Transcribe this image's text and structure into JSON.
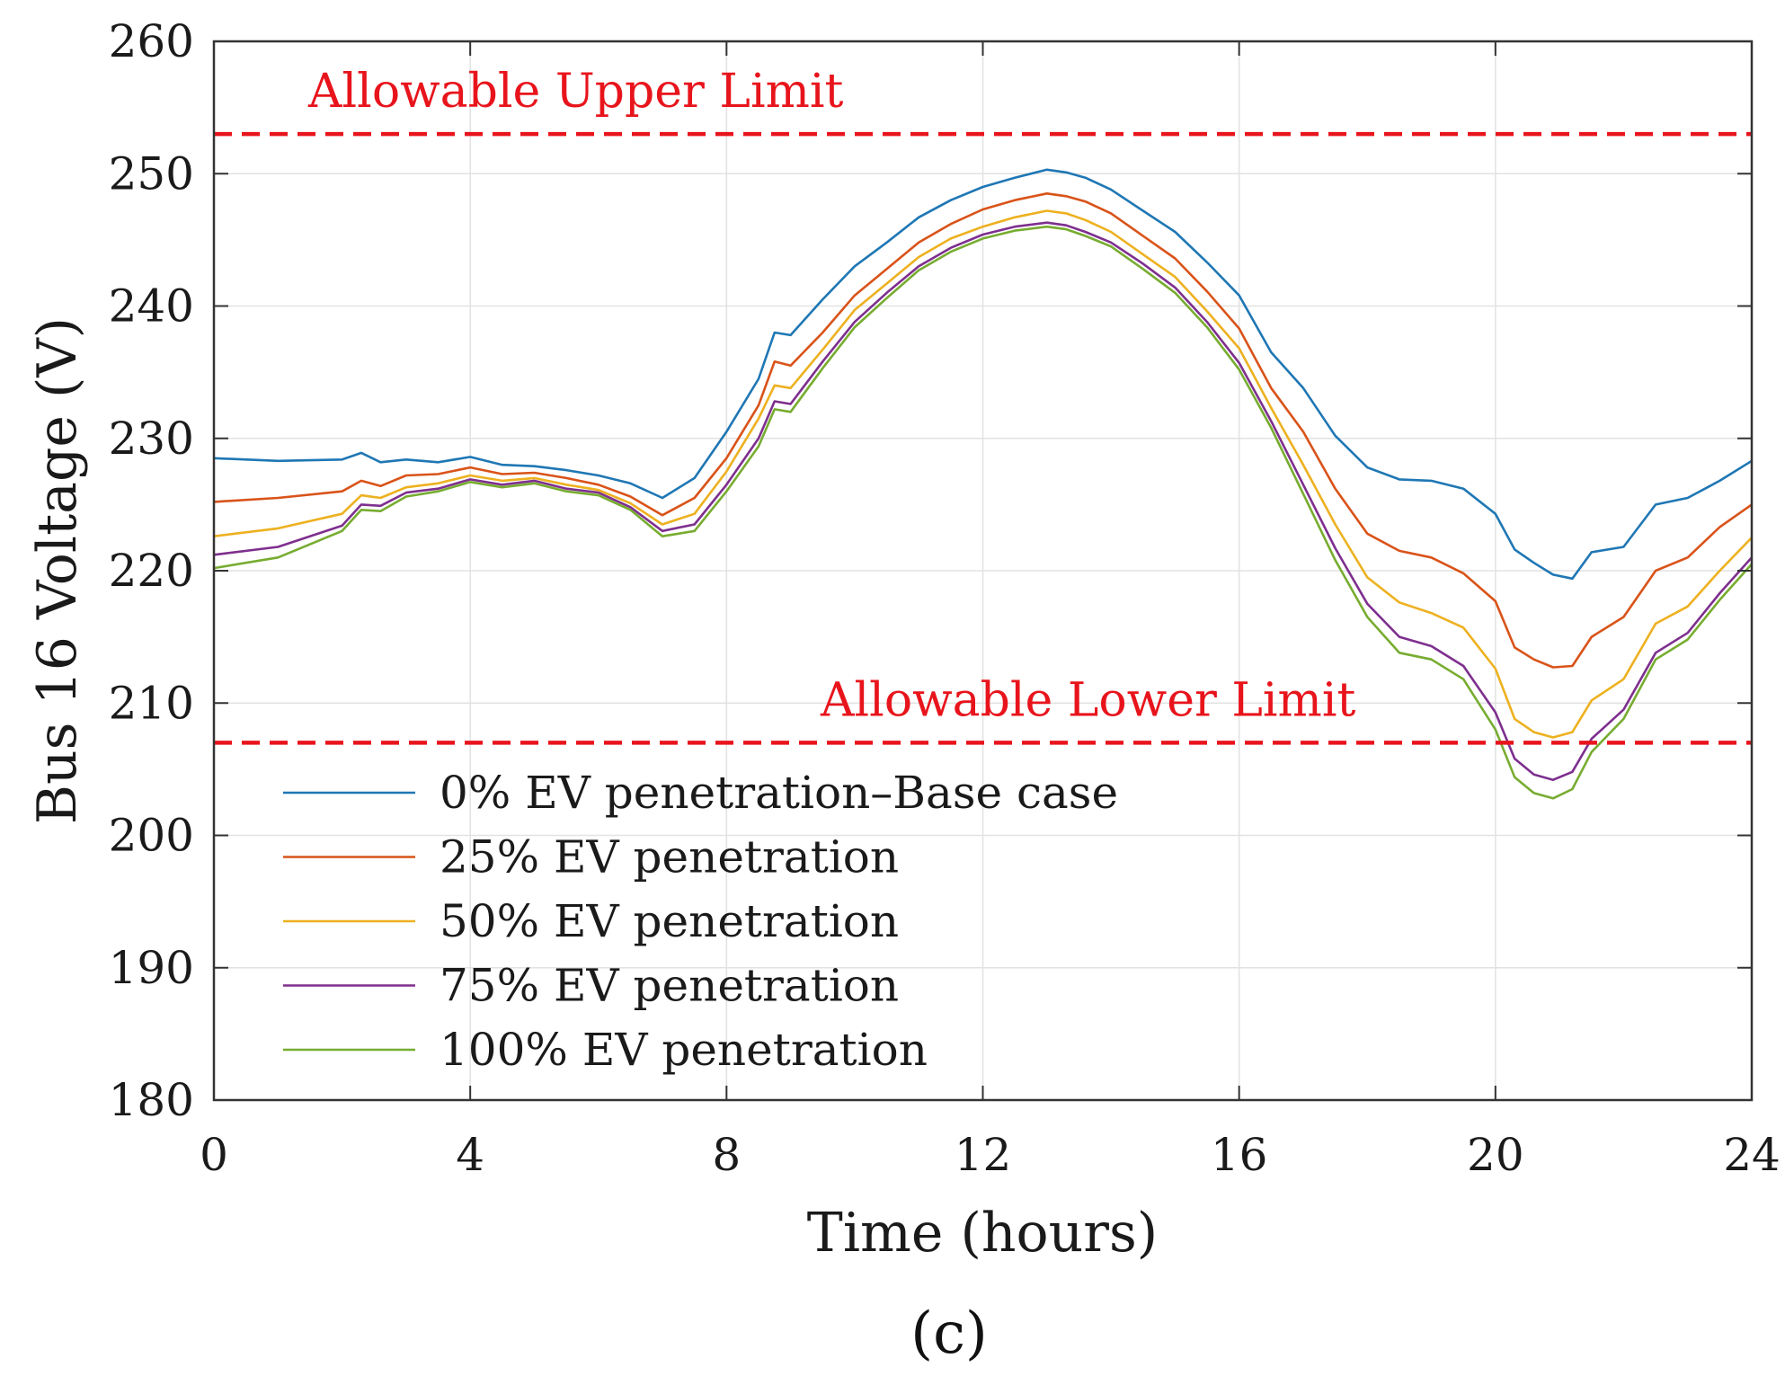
{
  "chart_data": {
    "type": "line",
    "title": "",
    "xlabel": "Time (hours)",
    "ylabel": "Bus 16 Voltage (V)",
    "xlim": [
      0,
      24
    ],
    "ylim": [
      180,
      260
    ],
    "xticks": [
      0,
      4,
      8,
      12,
      16,
      20,
      24
    ],
    "yticks": [
      180,
      190,
      200,
      210,
      220,
      230,
      240,
      250,
      260
    ],
    "grid": true,
    "legend_position": "lower-left",
    "panel_label": "(c)",
    "limits": [
      {
        "name": "Allowable Upper Limit",
        "value": 253,
        "color": "#e8141c"
      },
      {
        "name": "Allowable Lower Limit",
        "value": 207,
        "color": "#e8141c"
      }
    ],
    "x": [
      0,
      1,
      2,
      2.3,
      2.6,
      3,
      3.5,
      4,
      4.5,
      5,
      5.5,
      6,
      6.5,
      7,
      7.5,
      8,
      8.5,
      8.75,
      9,
      9.5,
      10,
      10.5,
      11,
      11.5,
      12,
      12.5,
      13,
      13.3,
      13.6,
      14,
      14.5,
      15,
      15.5,
      16,
      16.5,
      17,
      17.5,
      18,
      18.5,
      19,
      19.5,
      20,
      20.3,
      20.6,
      20.9,
      21.2,
      21.5,
      22,
      22.5,
      23,
      23.5,
      24
    ],
    "series": [
      {
        "name": "0% EV penetration–Base case",
        "color": "#1f77b4",
        "values": [
          228.5,
          228.3,
          228.4,
          228.9,
          228.2,
          228.4,
          228.2,
          228.6,
          228.0,
          227.9,
          227.6,
          227.2,
          226.6,
          225.5,
          227.0,
          230.5,
          234.5,
          238.0,
          237.8,
          240.5,
          243.0,
          244.8,
          246.7,
          248.0,
          249.0,
          249.7,
          250.3,
          250.1,
          249.7,
          248.8,
          247.2,
          245.6,
          243.3,
          240.8,
          236.5,
          233.8,
          230.2,
          227.8,
          226.9,
          226.8,
          226.2,
          224.3,
          221.6,
          220.6,
          219.7,
          219.4,
          221.4,
          221.8,
          225.0,
          225.5,
          226.8,
          228.3
        ]
      },
      {
        "name": "25% EV penetration",
        "color": "#d95319",
        "values": [
          225.2,
          225.5,
          226.0,
          226.8,
          226.4,
          227.2,
          227.3,
          227.8,
          227.3,
          227.4,
          227.0,
          226.5,
          225.6,
          224.2,
          225.5,
          228.5,
          232.5,
          235.8,
          235.5,
          238.0,
          240.8,
          242.8,
          244.8,
          246.2,
          247.3,
          248.0,
          248.5,
          248.3,
          247.9,
          247.0,
          245.3,
          243.6,
          241.1,
          238.3,
          233.8,
          230.5,
          226.2,
          222.8,
          221.5,
          221.0,
          219.8,
          217.7,
          214.2,
          213.3,
          212.7,
          212.8,
          215.0,
          216.5,
          220.0,
          221.0,
          223.3,
          225.0
        ]
      },
      {
        "name": "50% EV penetration",
        "color": "#edb120",
        "values": [
          222.6,
          223.2,
          224.3,
          225.7,
          225.5,
          226.3,
          226.6,
          227.2,
          226.8,
          227.0,
          226.5,
          226.1,
          225.1,
          223.5,
          224.3,
          227.5,
          231.5,
          234.0,
          233.8,
          236.7,
          239.7,
          241.7,
          243.7,
          245.1,
          246.0,
          246.7,
          247.2,
          247.0,
          246.5,
          245.6,
          243.9,
          242.2,
          239.6,
          236.8,
          232.3,
          228.0,
          223.5,
          219.5,
          217.6,
          216.8,
          215.7,
          212.6,
          208.8,
          207.8,
          207.4,
          207.8,
          210.2,
          211.8,
          216.0,
          217.3,
          220.0,
          222.5
        ]
      },
      {
        "name": "75% EV penetration",
        "color": "#7e2f8e",
        "values": [
          221.2,
          221.8,
          223.4,
          225.0,
          224.9,
          225.9,
          226.2,
          226.9,
          226.5,
          226.8,
          226.2,
          225.9,
          224.8,
          223.0,
          223.5,
          226.5,
          230.0,
          232.8,
          232.6,
          235.8,
          238.8,
          241.0,
          243.0,
          244.4,
          245.4,
          246.0,
          246.3,
          246.1,
          245.6,
          244.8,
          243.2,
          241.4,
          238.8,
          235.7,
          231.3,
          226.5,
          221.7,
          217.5,
          215.0,
          214.3,
          212.8,
          209.3,
          205.8,
          204.6,
          204.2,
          204.8,
          207.3,
          209.5,
          213.8,
          215.3,
          218.3,
          221.0
        ]
      },
      {
        "name": "100% EV penetration",
        "color": "#77ac30",
        "values": [
          220.2,
          221.0,
          223.0,
          224.6,
          224.5,
          225.6,
          226.0,
          226.7,
          226.3,
          226.6,
          226.0,
          225.7,
          224.6,
          222.6,
          223.0,
          226.0,
          229.4,
          232.2,
          232.0,
          235.3,
          238.4,
          240.6,
          242.7,
          244.1,
          245.1,
          245.7,
          246.0,
          245.8,
          245.3,
          244.5,
          242.8,
          241.0,
          238.4,
          235.2,
          230.8,
          225.8,
          220.8,
          216.5,
          213.8,
          213.3,
          211.8,
          208.0,
          204.4,
          203.2,
          202.8,
          203.5,
          206.3,
          208.8,
          213.3,
          214.8,
          217.8,
          220.5
        ]
      }
    ]
  }
}
